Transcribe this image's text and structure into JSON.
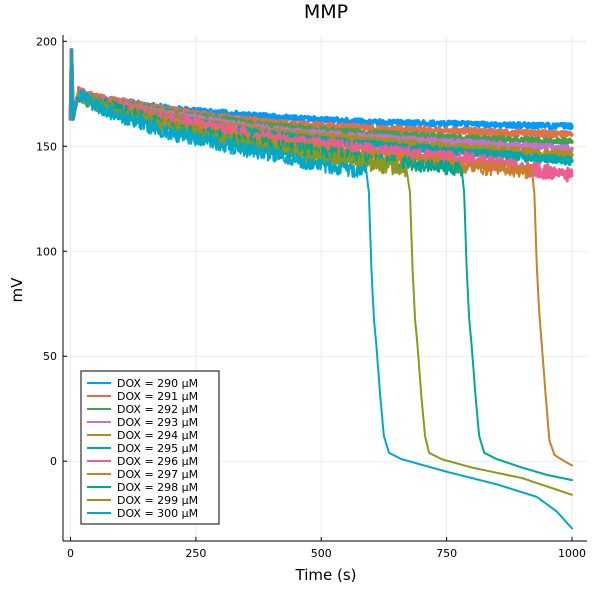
{
  "chart_data": {
    "type": "line",
    "title": "MMP",
    "xlabel": "Time (s)",
    "ylabel": "mV",
    "xlim": [
      -15,
      1030
    ],
    "ylim": [
      -38,
      203
    ],
    "xticks": [
      0,
      250,
      500,
      750,
      1000
    ],
    "xtick_labels": [
      "0",
      "250",
      "500",
      "750",
      "1000"
    ],
    "yticks": [
      0,
      50,
      100,
      150,
      200
    ],
    "ytick_labels": [
      "0",
      "50",
      "100",
      "150",
      "200"
    ],
    "grid": true,
    "legend_position": "bottom-left",
    "series": [
      {
        "name": "DOX = 290 μM",
        "color": "#009AFA",
        "noise": 1.2,
        "width": 3.5,
        "points": [
          [
            0,
            163
          ],
          [
            2,
            196
          ],
          [
            5,
            163
          ],
          [
            15,
            175
          ],
          [
            60,
            173
          ],
          [
            200,
            168
          ],
          [
            400,
            164
          ],
          [
            600,
            161.5
          ],
          [
            800,
            160.5
          ],
          [
            1000,
            159.5
          ]
        ]
      },
      {
        "name": "DOX = 291 μM",
        "color": "#E36F47",
        "noise": 1.5,
        "width": 3.5,
        "points": [
          [
            0,
            163
          ],
          [
            2,
            196
          ],
          [
            5,
            163
          ],
          [
            15,
            175
          ],
          [
            60,
            173
          ],
          [
            200,
            167
          ],
          [
            400,
            161
          ],
          [
            600,
            158.5
          ],
          [
            800,
            157
          ],
          [
            1000,
            155.5
          ]
        ]
      },
      {
        "name": "DOX = 292 μM",
        "color": "#3EA44E",
        "noise": 1.5,
        "width": 3.5,
        "points": [
          [
            0,
            163
          ],
          [
            2,
            196
          ],
          [
            5,
            163
          ],
          [
            15,
            175
          ],
          [
            60,
            172
          ],
          [
            200,
            166
          ],
          [
            400,
            159.5
          ],
          [
            600,
            156
          ],
          [
            800,
            153.5
          ],
          [
            1000,
            152
          ]
        ]
      },
      {
        "name": "DOX = 293 μM",
        "color": "#C371D2",
        "noise": 1.5,
        "width": 3.5,
        "points": [
          [
            0,
            163
          ],
          [
            2,
            196
          ],
          [
            5,
            163
          ],
          [
            15,
            175
          ],
          [
            60,
            172
          ],
          [
            200,
            165
          ],
          [
            400,
            158
          ],
          [
            600,
            154
          ],
          [
            800,
            151.5
          ],
          [
            1000,
            149
          ]
        ]
      },
      {
        "name": "DOX = 294 μM",
        "color": "#AC8E18",
        "noise": 1.6,
        "width": 3.5,
        "points": [
          [
            0,
            163
          ],
          [
            2,
            196
          ],
          [
            5,
            163
          ],
          [
            15,
            175
          ],
          [
            60,
            172
          ],
          [
            200,
            164
          ],
          [
            400,
            156.5
          ],
          [
            600,
            152.5
          ],
          [
            800,
            149
          ],
          [
            1000,
            146
          ]
        ]
      },
      {
        "name": "DOX = 295 μM",
        "color": "#00A9AD",
        "noise": 1.8,
        "width": 3.5,
        "points": [
          [
            0,
            163
          ],
          [
            2,
            196
          ],
          [
            5,
            163
          ],
          [
            15,
            175
          ],
          [
            60,
            171
          ],
          [
            200,
            163
          ],
          [
            400,
            155
          ],
          [
            600,
            150.5
          ],
          [
            800,
            147
          ],
          [
            1000,
            143
          ]
        ]
      },
      {
        "name": "DOX = 296 μM",
        "color": "#ED5D92",
        "noise": 3.5,
        "width": 3,
        "points": [
          [
            0,
            163
          ],
          [
            2,
            196
          ],
          [
            5,
            163
          ],
          [
            15,
            175
          ],
          [
            60,
            171
          ],
          [
            200,
            162
          ],
          [
            400,
            153
          ],
          [
            600,
            148
          ],
          [
            800,
            143.5
          ],
          [
            1000,
            136
          ]
        ]
      },
      {
        "name": "DOX = 297 μM",
        "color": "#C68225",
        "noise": 3.5,
        "width": 2,
        "points": [
          [
            0,
            163
          ],
          [
            2,
            196
          ],
          [
            5,
            163
          ],
          [
            15,
            175
          ],
          [
            60,
            170
          ],
          [
            200,
            160
          ],
          [
            400,
            151
          ],
          [
            600,
            145
          ],
          [
            800,
            140
          ],
          [
            920,
            138
          ],
          [
            925,
            128
          ],
          [
            930,
            92
          ],
          [
            935,
            70
          ],
          [
            940,
            55
          ],
          [
            948,
            30
          ],
          [
            955,
            10
          ],
          [
            965,
            3
          ],
          [
            985,
            0
          ],
          [
            1000,
            -2
          ]
        ]
      },
      {
        "name": "DOX = 298 μM",
        "color": "#00A98D",
        "noise": 3.5,
        "width": 2,
        "points": [
          [
            0,
            163
          ],
          [
            2,
            196
          ],
          [
            5,
            163
          ],
          [
            15,
            175
          ],
          [
            60,
            170
          ],
          [
            200,
            159
          ],
          [
            400,
            150
          ],
          [
            600,
            144
          ],
          [
            700,
            141
          ],
          [
            780,
            139
          ],
          [
            785,
            128
          ],
          [
            790,
            92
          ],
          [
            795,
            68
          ],
          [
            800,
            55
          ],
          [
            808,
            30
          ],
          [
            815,
            12
          ],
          [
            825,
            4
          ],
          [
            850,
            1
          ],
          [
            900,
            -3
          ],
          [
            950,
            -6.5
          ],
          [
            1000,
            -9
          ]
        ]
      },
      {
        "name": "DOX = 299 μM",
        "color": "#8E971E",
        "noise": 3.5,
        "width": 2,
        "points": [
          [
            0,
            163
          ],
          [
            2,
            196
          ],
          [
            5,
            163
          ],
          [
            15,
            175
          ],
          [
            60,
            169
          ],
          [
            200,
            158
          ],
          [
            400,
            148
          ],
          [
            550,
            143
          ],
          [
            670,
            139
          ],
          [
            677,
            128
          ],
          [
            682,
            92
          ],
          [
            687,
            68
          ],
          [
            692,
            55
          ],
          [
            700,
            30
          ],
          [
            707,
            12
          ],
          [
            715,
            4
          ],
          [
            740,
            1
          ],
          [
            800,
            -3
          ],
          [
            900,
            -8
          ],
          [
            1000,
            -16
          ]
        ]
      },
      {
        "name": "DOX = 300 μM",
        "color": "#00A8CB",
        "noise": 3.5,
        "width": 2,
        "points": [
          [
            0,
            163
          ],
          [
            2,
            196
          ],
          [
            5,
            163
          ],
          [
            15,
            175
          ],
          [
            60,
            168
          ],
          [
            200,
            156
          ],
          [
            400,
            146
          ],
          [
            500,
            141
          ],
          [
            590,
            138
          ],
          [
            595,
            128
          ],
          [
            600,
            92
          ],
          [
            605,
            68
          ],
          [
            610,
            55
          ],
          [
            618,
            30
          ],
          [
            625,
            12
          ],
          [
            635,
            4
          ],
          [
            660,
            1
          ],
          [
            750,
            -5
          ],
          [
            850,
            -11
          ],
          [
            930,
            -17
          ],
          [
            970,
            -24
          ],
          [
            1000,
            -32
          ]
        ]
      }
    ]
  }
}
